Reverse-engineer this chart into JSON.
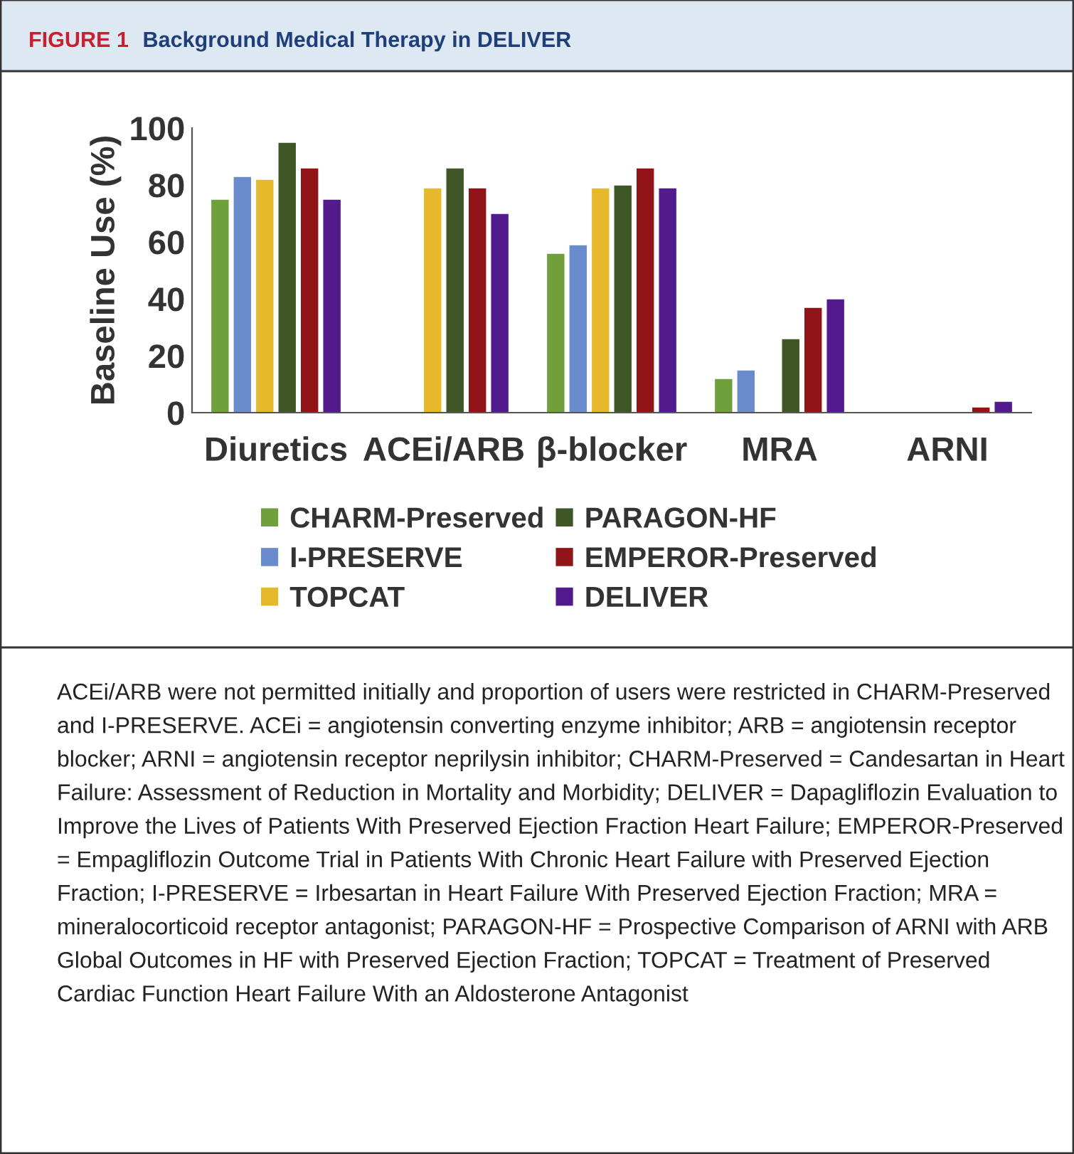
{
  "chart_data": {
    "type": "bar",
    "title": "Background Medical Therapy in DELIVER",
    "ylabel": "Baseline Use (%)",
    "categories": [
      "Diuretics",
      "ACEi/ARB",
      "β-blocker",
      "MRA",
      "ARNI"
    ],
    "series": [
      {
        "name": "CHARM-Preserved",
        "color": "#70a03c",
        "values": [
          75,
          null,
          56,
          12,
          null
        ]
      },
      {
        "name": "I-PRESERVE",
        "color": "#6a8ccc",
        "values": [
          83,
          null,
          59,
          15,
          null
        ]
      },
      {
        "name": "TOPCAT",
        "color": "#e6b82c",
        "values": [
          82,
          79,
          79,
          null,
          null
        ]
      },
      {
        "name": "PARAGON-HF",
        "color": "#3f5626",
        "values": [
          95,
          86,
          80,
          26,
          null
        ]
      },
      {
        "name": "EMPEROR-Preserved",
        "color": "#901418",
        "values": [
          86,
          79,
          86,
          37,
          2
        ]
      },
      {
        "name": "DELIVER",
        "color": "#521a8c",
        "values": [
          75,
          70,
          79,
          40,
          4
        ]
      }
    ],
    "ylim": [
      0,
      100
    ],
    "yticks": [
      0,
      20,
      40,
      60,
      80,
      100
    ],
    "grid": false,
    "legend": "bottom",
    "annotations": [
      "FIGURE 1",
      "ACEi/ARB were not permitted initially and proportion of users were restricted in CHARM-Preserved and I-PRESERVE. ACEi = angiotensin converting enzyme inhibitor; ARB = angiotensin receptor blocker; ARNI = angiotensin receptor neprilysin inhibitor; CHARM-Preserved = Candesartan in Heart Failure: Assessment of Reduction in Mortality and Morbidity; DELIVER = Dapagliflozin Evaluation to Improve the Lives of Patients With Preserved Ejection Fraction Heart Failure; EMPEROR-Preserved = Empagliflozin Outcome Trial in Patients With Chronic Heart Failure with Preserved Ejection Fraction; I-PRESERVE = Irbesartan in Heart Failure With Preserved Ejection Fraction; MRA = mineralocorticoid receptor antagonist; PARAGON-HF = Prospective Comparison of ARNI with ARB Global Outcomes in HF with Preserved Ejection Fraction; TOPCAT = Treatment of Preserved Cardiac Function Heart Failure With an Aldosterone Antagonist"
    ]
  }
}
